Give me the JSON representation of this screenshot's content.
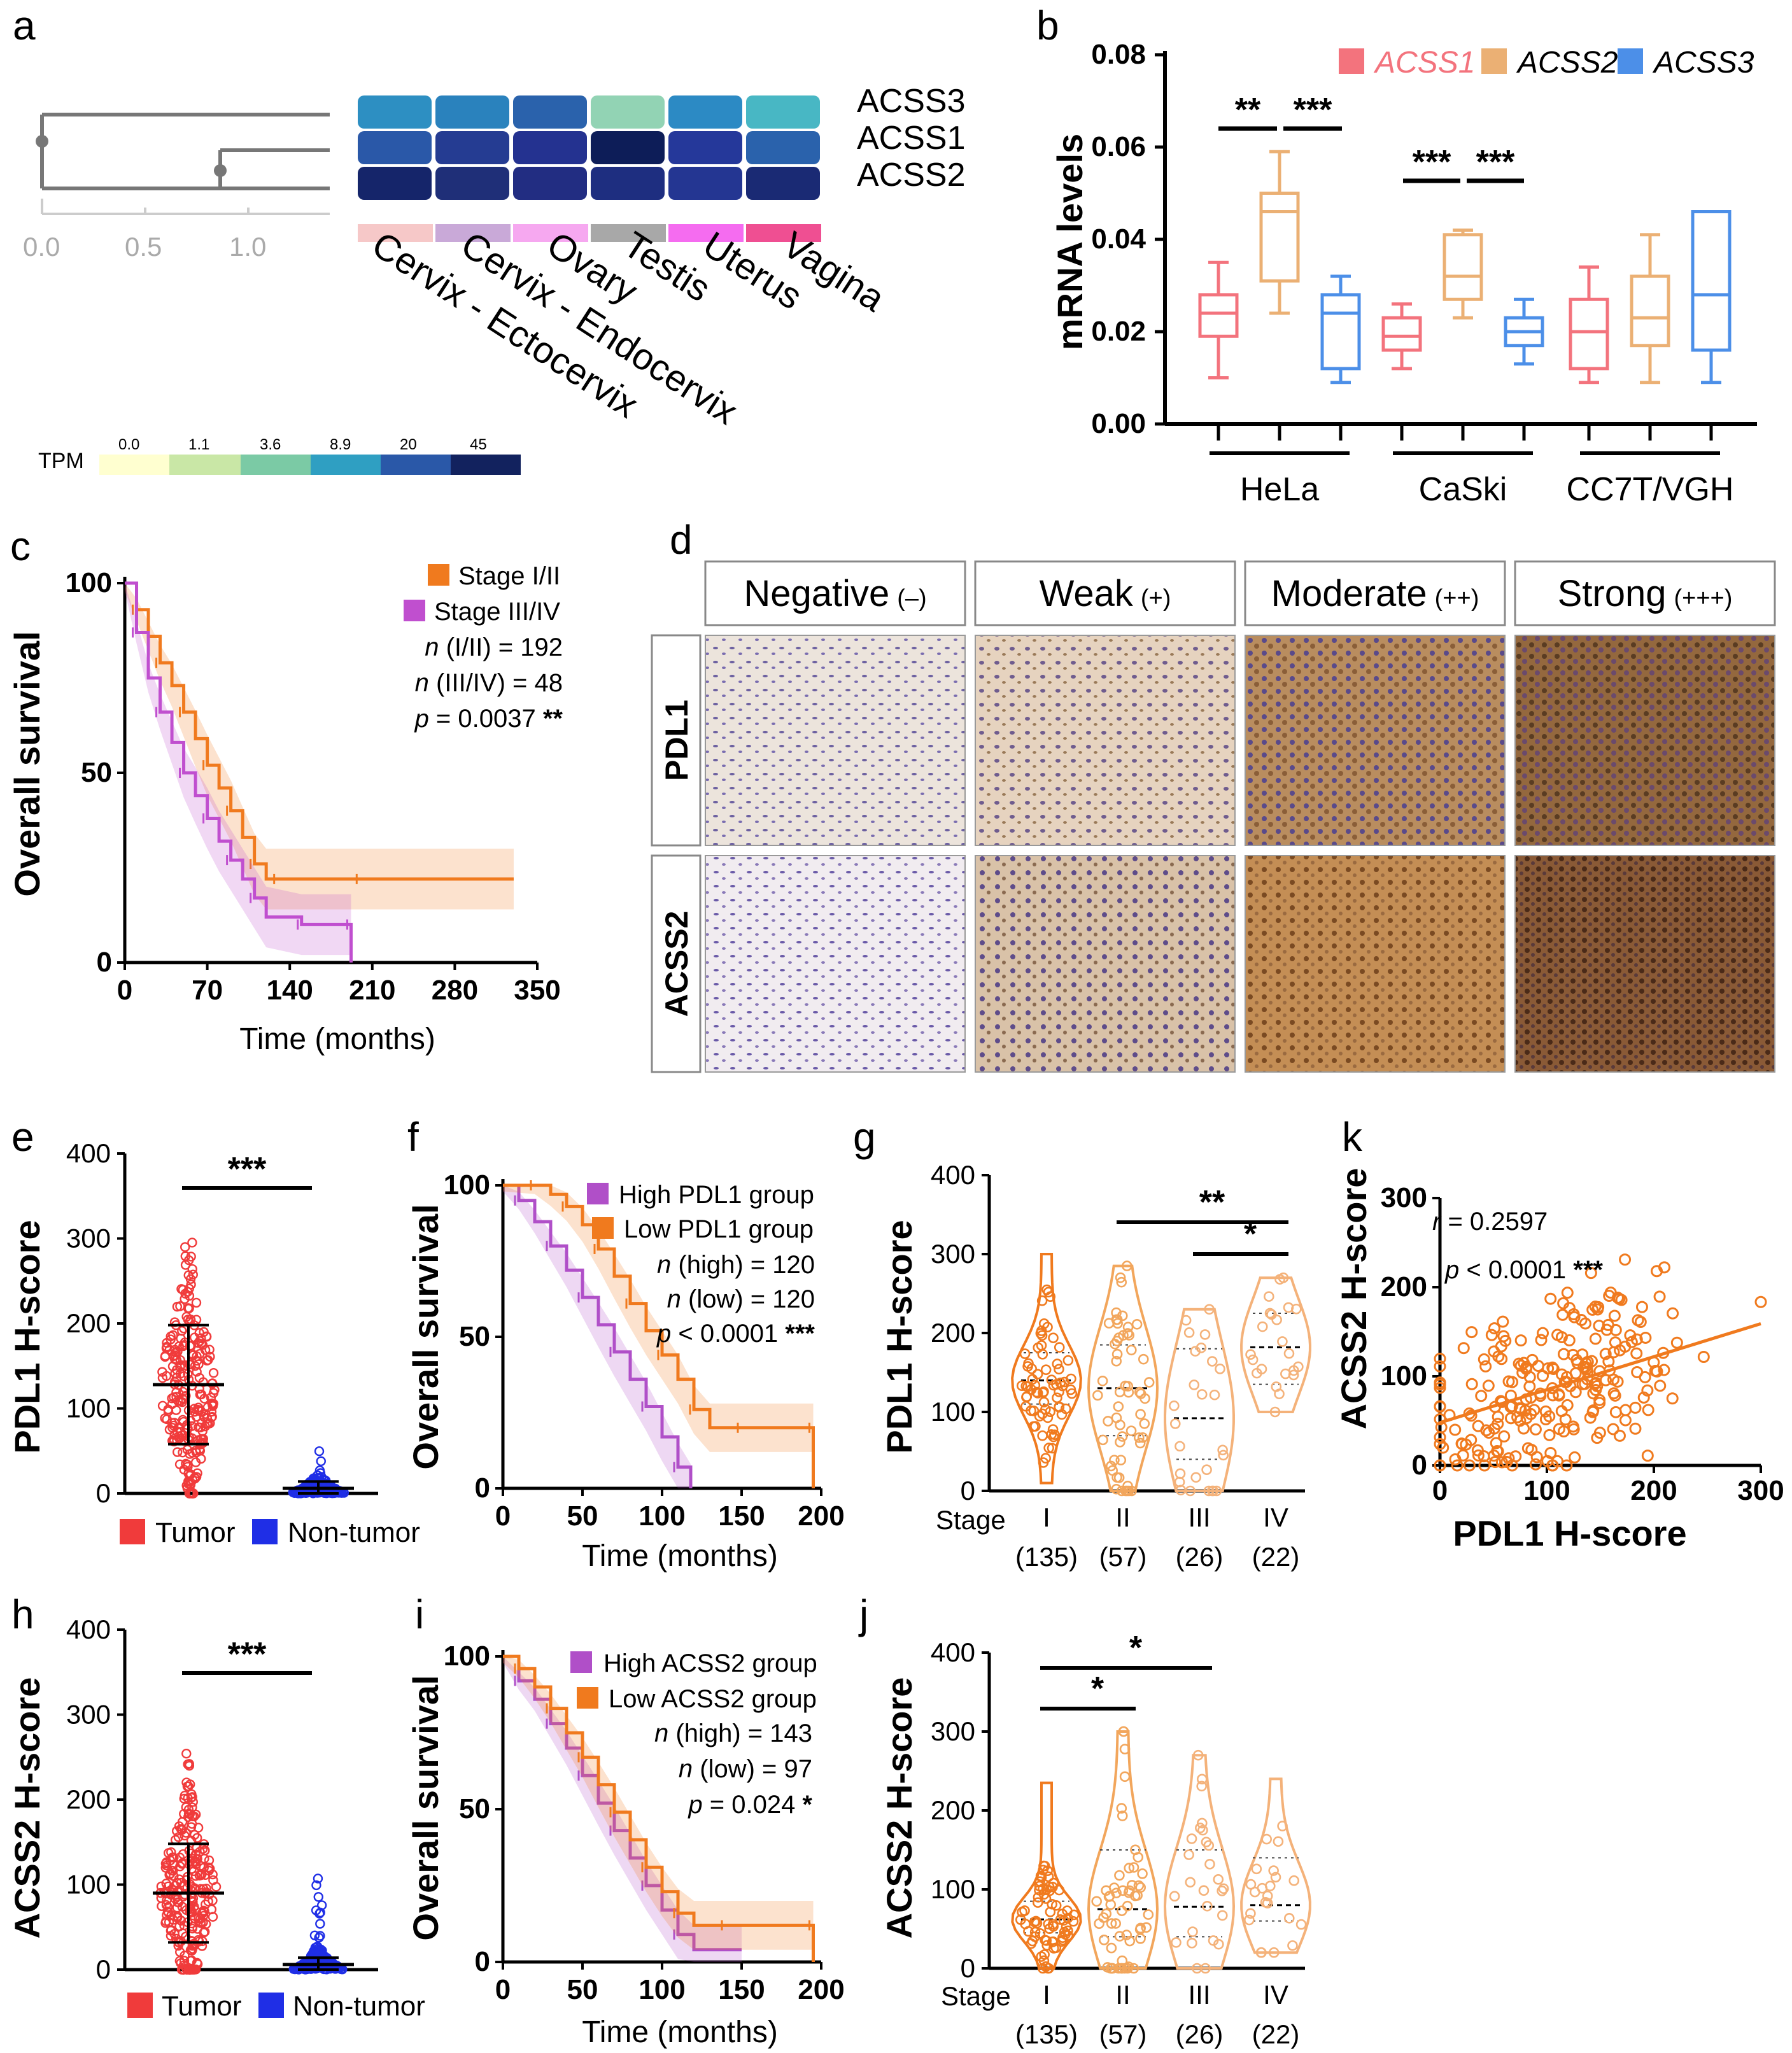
{
  "panels": {
    "a": {
      "label": "a",
      "genes": [
        "ACSS3",
        "ACSS1",
        "ACSS2"
      ],
      "tissues": [
        "Cervix - Ectocervix",
        "Cervix - Endocervix",
        "Ovary",
        "Testis",
        "Uterus",
        "Vagina"
      ],
      "tissue_colors": [
        "#f6c8c8",
        "#c9a9d8",
        "#f6a8f0",
        "#a8a8a8",
        "#f56cf0",
        "#ef4f92"
      ],
      "dendro_ticks": [
        "0.0",
        "0.5",
        "1.0"
      ],
      "tpm_label": "TPM",
      "tpm_ticks": [
        "0.0",
        "1.1",
        "3.6",
        "8.9",
        "20",
        "45"
      ],
      "tpm_colors": [
        "#ffffd0",
        "#c9e7a6",
        "#7bcaa5",
        "#2f9fc2",
        "#2a58a8",
        "#12225e"
      ],
      "heat_colors": [
        [
          "#2d8fc2",
          "#2a82bd",
          "#2a62ac",
          "#92d3b4",
          "#2c8ac4",
          "#48b7c4"
        ],
        [
          "#2a58a8",
          "#253c92",
          "#243290",
          "#0d1d58",
          "#25389a",
          "#2a62ac"
        ],
        [
          "#15256a",
          "#1f2f78",
          "#222d82",
          "#1e2e80",
          "#243692",
          "#1a2a74"
        ]
      ]
    },
    "b": {
      "label": "b",
      "ylabel": "mRNA levels",
      "yticks": [
        "0.00",
        "0.02",
        "0.04",
        "0.06",
        "0.08"
      ],
      "legend": [
        "ACSS1",
        "ACSS2",
        "ACSS3"
      ],
      "colors": {
        "ACSS1": "#f3737d",
        "ACSS2": "#ebb074",
        "ACSS3": "#4c8fe8"
      },
      "groups": [
        "HeLa",
        "CaSki",
        "CC7T/VGH"
      ],
      "sig": [
        "**",
        "***",
        "***",
        "***"
      ]
    },
    "c": {
      "label": "c",
      "ylabel": "Overall survival",
      "xlabel": "Time (months)",
      "yticks": [
        "0",
        "50",
        "100"
      ],
      "xticks": [
        "0",
        "70",
        "140",
        "210",
        "280",
        "350"
      ],
      "legend": [
        "Stage I/II",
        "Stage III/IV"
      ],
      "n1_pre": "n",
      "n1_post": " (I/II) = 192",
      "n2_pre": "n",
      "n2_post": " (III/IV) = 48",
      "p_pre": "p",
      "p_post": " = 0.0037 ",
      "p_sig": "**"
    },
    "d": {
      "label": "d",
      "columns": [
        "Negative",
        "Weak",
        "Moderate",
        "Strong"
      ],
      "column_marks": [
        "(–)",
        "(+)",
        "(++)",
        "(+++)"
      ],
      "rows": [
        "PDL1",
        "ACSS2"
      ]
    },
    "e": {
      "label": "e",
      "ylabel": "PDL1 H-score",
      "yticks": [
        "0",
        "100",
        "200",
        "300",
        "400"
      ],
      "legend": [
        "Tumor",
        "Non-tumor"
      ],
      "sig": "***"
    },
    "f": {
      "label": "f",
      "ylabel": "Overall survival",
      "xlabel": "Time (months)",
      "yticks": [
        "0",
        "50",
        "100"
      ],
      "xticks": [
        "0",
        "50",
        "100",
        "150",
        "200"
      ],
      "legend": [
        "High PDL1 group",
        "Low PDL1 group"
      ],
      "n1_pre": "n",
      "n1_post": " (high) = 120",
      "n2_pre": "n",
      "n2_post": " (low) = 120",
      "p_pre": "p",
      "p_post": " < 0.0001 ",
      "p_sig": "***"
    },
    "g": {
      "label": "g",
      "ylabel": "PDL1 H-score",
      "yticks": [
        "0",
        "100",
        "200",
        "300",
        "400"
      ],
      "stage_label": "Stage",
      "stages": [
        "I",
        "II",
        "III",
        "IV"
      ],
      "counts": [
        "(135)",
        "(57)",
        "(26)",
        "(22)"
      ],
      "sig": [
        "**",
        "*"
      ]
    },
    "h": {
      "label": "h",
      "ylabel": "ACSS2 H-score",
      "yticks": [
        "0",
        "100",
        "200",
        "300",
        "400"
      ],
      "legend": [
        "Tumor",
        "Non-tumor"
      ],
      "sig": "***"
    },
    "i": {
      "label": "i",
      "ylabel": "Overall survival",
      "xlabel": "Time (months)",
      "yticks": [
        "0",
        "50",
        "100"
      ],
      "xticks": [
        "0",
        "50",
        "100",
        "150",
        "200"
      ],
      "legend": [
        "High ACSS2 group",
        "Low ACSS2 group"
      ],
      "n1_pre": "n",
      "n1_post": " (high) = 143",
      "n2_pre": "n",
      "n2_post": " (low) = 97",
      "p_pre": "p",
      "p_post": " = 0.024 ",
      "p_sig": "*"
    },
    "j": {
      "label": "j",
      "ylabel": "ACSS2 H-score",
      "yticks": [
        "0",
        "100",
        "200",
        "300",
        "400"
      ],
      "stage_label": "Stage",
      "stages": [
        "I",
        "II",
        "III",
        "IV"
      ],
      "counts": [
        "(135)",
        "(57)",
        "(26)",
        "(22)"
      ],
      "sig": [
        "*",
        "*"
      ]
    },
    "k": {
      "label": "k",
      "ylabel": "ACSS2 H-score",
      "xlabel": "PDL1 H-score",
      "ticks": [
        "0",
        "100",
        "200",
        "300"
      ],
      "r_pre": "r",
      "r_post": " = 0.2597",
      "p_pre": "p",
      "p_post": " < 0.0001 ",
      "p_sig": "***"
    }
  },
  "chart_data": [
    {
      "panel": "b",
      "type": "box",
      "title": "",
      "xlabel": "",
      "ylabel": "mRNA levels",
      "ylim": [
        0,
        0.08
      ],
      "categories": [
        "HeLa",
        "CaSki",
        "CC7T/VGH"
      ],
      "series": [
        {
          "name": "ACSS1",
          "boxes": [
            {
              "min": 0.01,
              "q1": 0.019,
              "median": 0.024,
              "q3": 0.028,
              "max": 0.035
            },
            {
              "min": 0.012,
              "q1": 0.016,
              "median": 0.019,
              "q3": 0.023,
              "max": 0.026
            },
            {
              "min": 0.009,
              "q1": 0.012,
              "median": 0.02,
              "q3": 0.027,
              "max": 0.034
            }
          ]
        },
        {
          "name": "ACSS2",
          "boxes": [
            {
              "min": 0.024,
              "q1": 0.031,
              "median": 0.046,
              "q3": 0.05,
              "max": 0.059
            },
            {
              "min": 0.023,
              "q1": 0.027,
              "median": 0.032,
              "q3": 0.041,
              "max": 0.042
            },
            {
              "min": 0.009,
              "q1": 0.017,
              "median": 0.023,
              "q3": 0.032,
              "max": 0.041
            }
          ]
        },
        {
          "name": "ACSS3",
          "boxes": [
            {
              "min": 0.009,
              "q1": 0.012,
              "median": 0.024,
              "q3": 0.028,
              "max": 0.032
            },
            {
              "min": 0.013,
              "q1": 0.017,
              "median": 0.02,
              "q3": 0.023,
              "max": 0.027
            },
            {
              "min": 0.009,
              "q1": 0.016,
              "median": 0.028,
              "q3": 0.046,
              "max": 0.046
            }
          ]
        }
      ]
    },
    {
      "panel": "c",
      "type": "line",
      "title": "",
      "xlabel": "Time (months)",
      "ylabel": "Overall survival",
      "xlim": [
        0,
        350
      ],
      "ylim": [
        0,
        100
      ],
      "series": [
        {
          "name": "Stage I/II",
          "color": "#f07a1e",
          "x": [
            0,
            10,
            20,
            30,
            40,
            50,
            60,
            70,
            80,
            90,
            100,
            110,
            120,
            130,
            140,
            200,
            260,
            330
          ],
          "y": [
            100,
            93,
            86,
            79,
            73,
            66,
            59,
            52,
            46,
            40,
            33,
            26,
            22,
            22,
            22,
            22,
            22,
            22
          ]
        },
        {
          "name": "Stage III/IV",
          "color": "#c04fcf",
          "x": [
            0,
            10,
            20,
            30,
            40,
            50,
            60,
            70,
            80,
            90,
            100,
            110,
            120,
            150,
            190,
            192,
            192
          ],
          "y": [
            100,
            87,
            75,
            66,
            58,
            50,
            44,
            38,
            32,
            27,
            22,
            17,
            12,
            10,
            10,
            10,
            0
          ]
        }
      ]
    },
    {
      "panel": "f",
      "type": "line",
      "title": "",
      "xlabel": "Time (months)",
      "ylabel": "Overall survival",
      "xlim": [
        0,
        200
      ],
      "ylim": [
        0,
        100
      ],
      "series": [
        {
          "name": "High PDL1 group",
          "color": "#b04fc8",
          "x": [
            0,
            10,
            20,
            30,
            40,
            50,
            60,
            70,
            80,
            90,
            100,
            110,
            118
          ],
          "y": [
            100,
            95,
            88,
            80,
            72,
            63,
            54,
            45,
            36,
            27,
            17,
            7,
            0
          ]
        },
        {
          "name": "Low PDL1 group",
          "color": "#f07a1e",
          "x": [
            0,
            20,
            30,
            40,
            50,
            60,
            70,
            80,
            90,
            100,
            110,
            120,
            130,
            150,
            170,
            195,
            195
          ],
          "y": [
            100,
            100,
            97,
            93,
            87,
            79,
            70,
            61,
            52,
            44,
            36,
            26,
            20,
            20,
            20,
            20,
            0
          ]
        }
      ]
    },
    {
      "panel": "i",
      "type": "line",
      "title": "",
      "xlabel": "Time (months)",
      "ylabel": "Overall survival",
      "xlim": [
        0,
        200
      ],
      "ylim": [
        0,
        100
      ],
      "series": [
        {
          "name": "High ACSS2 group",
          "color": "#b04fc8",
          "x": [
            0,
            10,
            20,
            30,
            40,
            50,
            60,
            70,
            80,
            90,
            100,
            110,
            120,
            150
          ],
          "y": [
            100,
            92,
            86,
            78,
            70,
            61,
            52,
            43,
            34,
            25,
            17,
            9,
            4,
            4
          ]
        },
        {
          "name": "Low ACSS2 group",
          "color": "#f07a1e",
          "x": [
            0,
            10,
            20,
            30,
            40,
            50,
            60,
            70,
            80,
            90,
            100,
            110,
            120,
            140,
            160,
            195,
            195
          ],
          "y": [
            100,
            96,
            90,
            83,
            75,
            67,
            58,
            49,
            40,
            31,
            23,
            16,
            12,
            12,
            12,
            12,
            0
          ]
        }
      ]
    },
    {
      "panel": "e",
      "type": "scatter",
      "title": "",
      "ylabel": "PDL1 H-score",
      "ylim": [
        0,
        400
      ],
      "categories": [
        "Tumor",
        "Non-tumor"
      ],
      "series": [
        {
          "name": "Tumor",
          "color": "#f03b3b",
          "mean": 128,
          "sd": 70,
          "min": 0,
          "max": 300,
          "n": 240
        },
        {
          "name": "Non-tumor",
          "color": "#1f2ee6",
          "mean": 5,
          "sd": 8,
          "min": 0,
          "max": 50,
          "n": 240
        }
      ]
    },
    {
      "panel": "h",
      "type": "scatter",
      "title": "",
      "ylabel": "ACSS2 H-score",
      "ylim": [
        0,
        400
      ],
      "categories": [
        "Tumor",
        "Non-tumor"
      ],
      "series": [
        {
          "name": "Tumor",
          "color": "#f03b3b",
          "mean": 90,
          "sd": 58,
          "min": 0,
          "max": 300,
          "n": 240
        },
        {
          "name": "Non-tumor",
          "color": "#1f2ee6",
          "mean": 5,
          "sd": 12,
          "min": 0,
          "max": 95,
          "n": 240
        }
      ]
    },
    {
      "panel": "g",
      "type": "violin",
      "title": "",
      "ylabel": "PDL1 H-score",
      "ylim": [
        0,
        400
      ],
      "categories": [
        "I",
        "II",
        "III",
        "IV"
      ],
      "series": [
        {
          "name": "I",
          "n": 135,
          "median": 140,
          "q1": 110,
          "q3": 175,
          "min": 10,
          "max": 300
        },
        {
          "name": "II",
          "n": 57,
          "median": 130,
          "q1": 70,
          "q3": 185,
          "min": 0,
          "max": 285
        },
        {
          "name": "III",
          "n": 26,
          "median": 92,
          "q1": 40,
          "q3": 180,
          "min": 0,
          "max": 230
        },
        {
          "name": "IV",
          "n": 22,
          "median": 182,
          "q1": 135,
          "q3": 225,
          "min": 100,
          "max": 270
        }
      ]
    },
    {
      "panel": "j",
      "type": "violin",
      "title": "",
      "ylabel": "ACSS2 H-score",
      "ylim": [
        0,
        400
      ],
      "categories": [
        "I",
        "II",
        "III",
        "IV"
      ],
      "series": [
        {
          "name": "I",
          "n": 135,
          "median": 62,
          "q1": 45,
          "q3": 85,
          "min": 0,
          "max": 235
        },
        {
          "name": "II",
          "n": 57,
          "median": 75,
          "q1": 40,
          "q3": 150,
          "min": 0,
          "max": 300
        },
        {
          "name": "III",
          "n": 26,
          "median": 78,
          "q1": 40,
          "q3": 150,
          "min": 0,
          "max": 270
        },
        {
          "name": "IV",
          "n": 22,
          "median": 80,
          "q1": 60,
          "q3": 140,
          "min": 20,
          "max": 240
        }
      ]
    },
    {
      "panel": "k",
      "type": "scatter",
      "title": "",
      "xlabel": "PDL1 H-score",
      "ylabel": "ACSS2 H-score",
      "xlim": [
        0,
        300
      ],
      "ylim": [
        0,
        300
      ],
      "n": 240,
      "fit": {
        "intercept": 48,
        "slope": 0.37
      },
      "r": 0.2597
    }
  ]
}
